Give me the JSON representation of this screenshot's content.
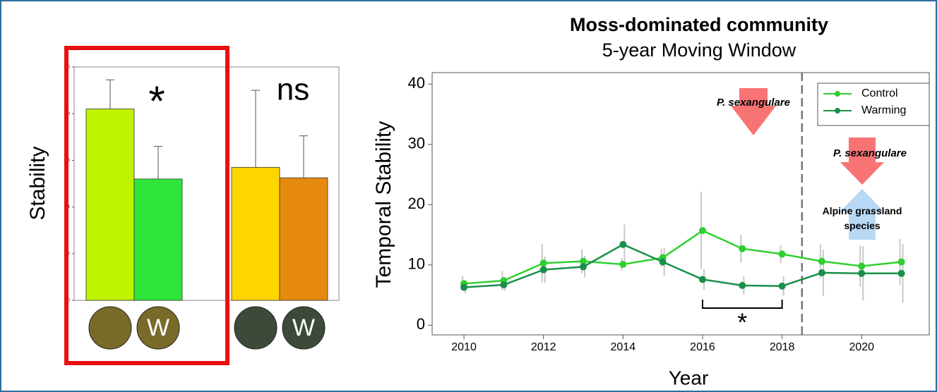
{
  "chart_data": [
    {
      "type": "bar",
      "ylabel": "Stability",
      "categories": [
        null,
        "W",
        null,
        "W"
      ],
      "values": [
        8.2,
        5.2,
        5.7,
        5.25
      ],
      "errors": [
        1.25,
        1.4,
        3.3,
        1.8
      ],
      "colors": [
        "#bef400",
        "#2ee63a",
        "#ffd500",
        "#e68a0e"
      ],
      "ylim": [
        0,
        10
      ],
      "yticks": [
        0,
        2,
        4,
        6,
        8,
        10
      ],
      "annotations": [
        "*",
        "ns"
      ]
    },
    {
      "type": "line",
      "title": "Moss-dominated community",
      "subtitle": "5-year Moving Window",
      "xlabel": "Year",
      "ylabel": "Temporal Stability",
      "x": [
        2010,
        2011,
        2012,
        2013,
        2014,
        2015,
        2016,
        2017,
        2018,
        2019,
        2020,
        2021
      ],
      "series": [
        {
          "name": "Control",
          "color": "#2fcf2f",
          "values": [
            6.9,
            7.4,
            10.3,
            10.6,
            10.1,
            11.2,
            15.7,
            12.7,
            11.8,
            10.6,
            9.8,
            10.5
          ],
          "errors": [
            1.2,
            1.6,
            3.2,
            2.0,
            1.0,
            1.5,
            6.4,
            2.3,
            1.5,
            2.8,
            3.4,
            3.8
          ]
        },
        {
          "name": "Warming",
          "color": "#1a8f4a",
          "values": [
            6.3,
            6.7,
            9.2,
            9.7,
            13.4,
            10.5,
            7.6,
            6.6,
            6.5,
            8.7,
            8.6,
            8.6
          ],
          "errors": [
            1.0,
            1.0,
            2.2,
            1.8,
            3.3,
            2.3,
            1.7,
            1.5,
            1.6,
            3.8,
            4.5,
            4.9
          ]
        }
      ],
      "xlim": [
        2009.2,
        2021.7
      ],
      "xticks": [
        2010,
        2012,
        2014,
        2016,
        2018,
        2020
      ],
      "ylim": [
        -1.6,
        41.9
      ],
      "yticks": [
        0,
        10,
        20,
        30,
        40
      ],
      "vline": 2018.5,
      "legend": "upper right",
      "annotations": [
        "P. sexangulare",
        "P. sexangulare",
        "Alpine grassland species",
        "*"
      ]
    }
  ]
}
